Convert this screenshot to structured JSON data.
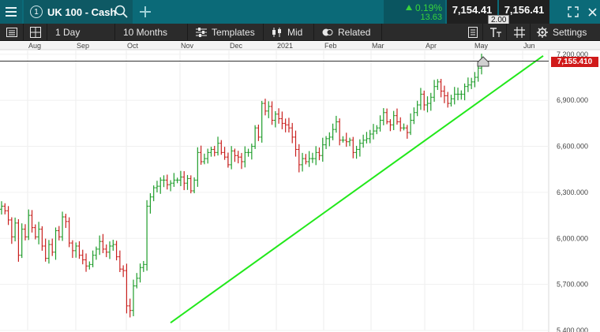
{
  "topbar": {
    "instrument_number": "1",
    "instrument_name": "UK 100 - Cash",
    "change_pct": "0.19%",
    "change_abs": "13.63",
    "sell_price": "7,154.41",
    "buy_price": "7,156.41",
    "spread": "2.00",
    "icons": [
      "menu-icon",
      "search-icon",
      "plus-icon",
      "change-up-icon",
      "expand-icon",
      "close-icon"
    ]
  },
  "toolbar": {
    "interval": "1 Day",
    "range": "10 Months",
    "templates": "Templates",
    "price_type": "Mid",
    "related": "Related",
    "settings": "Settings",
    "icons": [
      "list-icon",
      "layout-icon",
      "templates-icon",
      "candle-icon",
      "related-icon",
      "orders-icon",
      "text-icon",
      "grid-icon",
      "gear-icon"
    ]
  },
  "chart_data": {
    "type": "ohlc-bar",
    "x_ticks": [
      "Aug",
      "Sep",
      "Oct",
      "Nov",
      "Dec",
      "2021",
      "Feb",
      "Mar",
      "Apr",
      "May",
      "Jun"
    ],
    "y_ticks": [
      "5,400.000",
      "5,700.000",
      "6,000.000",
      "6,300.000",
      "6,600.000",
      "6,900.000",
      "7,200.000"
    ],
    "ylim": [
      5400,
      7230
    ],
    "current_price": "7,155.410",
    "current_price_value": 7155.41,
    "up_color": "#1f9d2b",
    "down_color": "#c9201e",
    "trendline_color": "#22e81b",
    "trendline": [
      [
        5450,
        0
      ],
      [
        7190,
        1
      ]
    ],
    "series": [
      6210,
      6180,
      6120,
      6010,
      6100,
      5890,
      6060,
      6010,
      6150,
      6070,
      6010,
      6060,
      5950,
      5870,
      5960,
      5910,
      6050,
      6010,
      6140,
      6110,
      5970,
      5920,
      5950,
      5890,
      5860,
      5820,
      5830,
      5890,
      5930,
      5980,
      5930,
      5910,
      5950,
      5960,
      5880,
      5800,
      5790,
      5560,
      5530,
      5690,
      5740,
      5810,
      5830,
      6210,
      6270,
      6330,
      6340,
      6380,
      6380,
      6350,
      6360,
      6380,
      6380,
      6400,
      6360,
      6390,
      6310,
      6380,
      6560,
      6500,
      6520,
      6560,
      6580,
      6560,
      6620,
      6560,
      6530,
      6480,
      6570,
      6540,
      6530,
      6500,
      6560,
      6560,
      6600,
      6720,
      6660,
      6880,
      6830,
      6860,
      6770,
      6810,
      6780,
      6750,
      6740,
      6720,
      6660,
      6580,
      6480,
      6520,
      6500,
      6520,
      6520,
      6560,
      6540,
      6610,
      6650,
      6660,
      6710,
      6760,
      6640,
      6640,
      6630,
      6640,
      6560,
      6580,
      6620,
      6640,
      6650,
      6680,
      6700,
      6720,
      6770,
      6820,
      6760,
      6740,
      6800,
      6760,
      6720,
      6720,
      6690,
      6770,
      6820,
      6870,
      6940,
      6870,
      6880,
      6920,
      6990,
      7020,
      6960,
      6930,
      6880,
      6910,
      6940,
      6940,
      6940,
      6990,
      7000,
      7020,
      7050,
      7110,
      7160
    ]
  }
}
